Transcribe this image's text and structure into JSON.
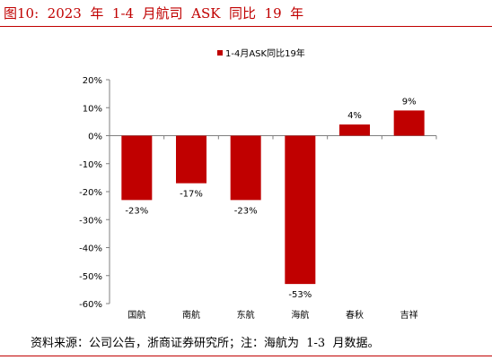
{
  "figure": {
    "title": "图10:  2023  年  1-4  月航司  ASK  同比  19  年",
    "source": "资料来源：公司公告，浙商证券研究所；注：海航为  1-3  月数据。"
  },
  "colors": {
    "accent": "#c00000",
    "bar": "#c00000",
    "axis": "#7f7f7f",
    "text": "#000000"
  },
  "chart_data": {
    "type": "bar",
    "categories": [
      "国航",
      "南航",
      "东航",
      "海航",
      "春秋",
      "吉祥"
    ],
    "series": [
      {
        "name": "1-4月ASK同比19年",
        "values": [
          -23,
          -17,
          -23,
          -53,
          4,
          9
        ]
      }
    ],
    "data_labels": [
      "-23%",
      "-17%",
      "-23%",
      "-53%",
      "4%",
      "9%"
    ],
    "ylim": [
      -60,
      20
    ],
    "yticks": [
      20,
      10,
      0,
      -10,
      -20,
      -30,
      -40,
      -50,
      -60
    ],
    "ytick_labels": [
      "20%",
      "10%",
      "0%",
      "-10%",
      "-20%",
      "-30%",
      "-40%",
      "-50%",
      "-60%"
    ],
    "legend_position": "top",
    "grid": false
  }
}
